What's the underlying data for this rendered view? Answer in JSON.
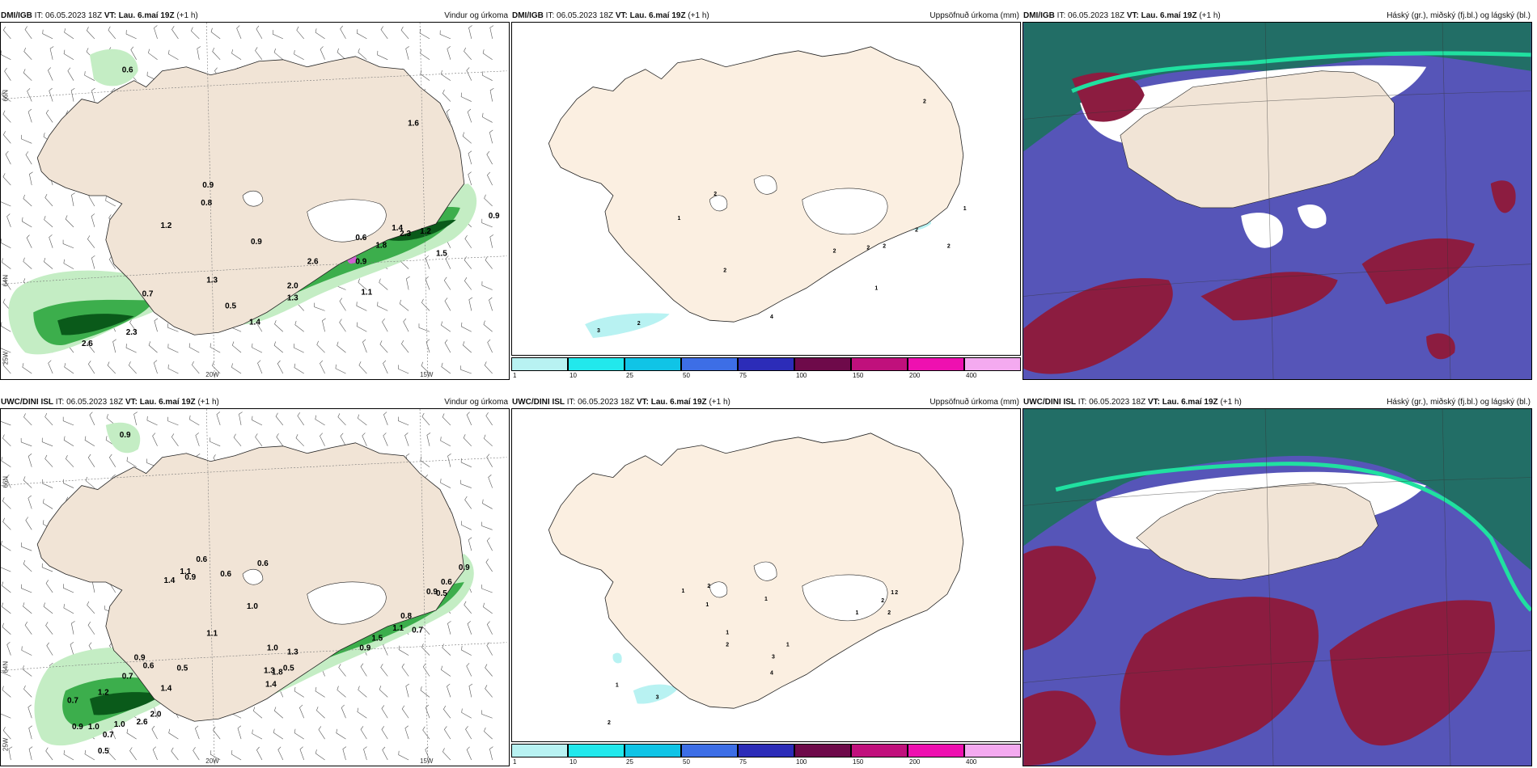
{
  "issue_time": "06.05.2023 18Z",
  "valid_time": "Lau. 6.maí 19Z",
  "lead": "(+1 h)",
  "it_label": "IT:",
  "vt_label": "VT:",
  "models": [
    "DMI/IGB",
    "UWC/DINI ISL"
  ],
  "titles": {
    "wind": "Vindur og úrkoma",
    "accum": "Uppsöfnuð úrkoma (mm)",
    "cloud": "Háský (gr.), miðský (fj.bl.) og lágský (bl.)"
  },
  "axis_labels": {
    "lat66": "66N",
    "lat64": "64N",
    "lon25": "25W",
    "lon20": "20W",
    "lon15": "15W"
  },
  "colorbar": {
    "ticks": [
      "1",
      "10",
      "25",
      "50",
      "75",
      "100",
      "150",
      "200",
      "400"
    ],
    "colors": [
      "#b8f2f2",
      "#22e8ec",
      "#10c4e6",
      "#3d6ee6",
      "#2c2cb8",
      "#6e0a4a",
      "#c0107c",
      "#ee10b0",
      "#f4aaf0"
    ]
  },
  "colors": {
    "land": "#f1e4d6",
    "land_accum": "#fbefe1",
    "precip_light": "#c4edc4",
    "precip_mid": "#3cae4c",
    "precip_dark": "#0a5a1a",
    "cloud_high": "#5655b8",
    "cloud_mid": "#8c1c40",
    "cloud_low": "#226e66"
  },
  "panels": {
    "dmi_wind_labels": [
      "0.6",
      "1.6",
      "0.9",
      "0.8",
      "1.2",
      "0.9",
      "1.3",
      "0.7",
      "0.5",
      "2.3",
      "2.6",
      "1.4",
      "2.0",
      "0.9",
      "1.4",
      "1.8",
      "2.3",
      "1.2",
      "0.9",
      "1.1",
      "2.6",
      "1.3",
      "1.5",
      "0.6"
    ],
    "uwc_wind_labels": [
      "0.9",
      "0.6",
      "1.1",
      "0.6",
      "1.0",
      "1.4",
      "0.9",
      "1.1",
      "0.6",
      "1.0",
      "0.5",
      "1.3",
      "0.7",
      "0.9",
      "0.6",
      "0.5",
      "0.7",
      "1.2",
      "1.4",
      "1.0",
      "2.0",
      "2.6",
      "0.9",
      "1.0",
      "0.7",
      "0.5",
      "1.4",
      "1.3",
      "1.8",
      "1.5",
      "0.9",
      "1.1",
      "0.7",
      "0.8",
      "0.9",
      "0.6",
      "0.9",
      "0.5"
    ],
    "dmi_accum_labels": [
      "2",
      "2",
      "1",
      "2",
      "2",
      "2",
      "2",
      "2",
      "1",
      "1",
      "4",
      "2",
      "3",
      "2"
    ],
    "uwc_accum_labels": [
      "1",
      "2",
      "1",
      "1",
      "1",
      "2",
      "1",
      "2",
      "3",
      "4",
      "2",
      "1",
      "1",
      "3",
      "2",
      "2",
      "1"
    ]
  }
}
